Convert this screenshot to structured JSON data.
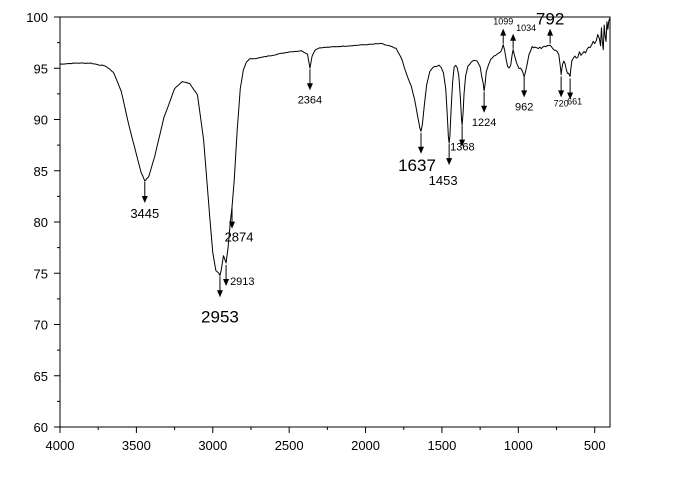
{
  "chart_data": {
    "type": "line",
    "title": "",
    "xlabel": "",
    "ylabel": "",
    "xlim": [
      4000,
      400
    ],
    "ylim": [
      60,
      100
    ],
    "x_reversed": true,
    "grid": false,
    "legend": "none",
    "line_color": "#000000",
    "xticks": [
      4000,
      3500,
      3000,
      2500,
      2000,
      1500,
      1000,
      500
    ],
    "yticks": [
      60,
      65,
      70,
      75,
      80,
      85,
      90,
      95,
      100
    ],
    "series": [
      {
        "x": [
          4000,
          3900,
          3800,
          3700,
          3650,
          3600,
          3550,
          3500,
          3470,
          3445,
          3420,
          3380,
          3320,
          3250,
          3200,
          3150,
          3100,
          3060,
          3020,
          3000,
          2980,
          2960,
          2953,
          2945,
          2930,
          2913,
          2900,
          2885,
          2874,
          2860,
          2840,
          2820,
          2800,
          2780,
          2760,
          2700,
          2600,
          2500,
          2420,
          2380,
          2364,
          2350,
          2330,
          2300,
          2200,
          2100,
          2000,
          1900,
          1850,
          1800,
          1760,
          1730,
          1700,
          1680,
          1660,
          1645,
          1637,
          1628,
          1615,
          1600,
          1580,
          1560,
          1540,
          1520,
          1505,
          1490,
          1475,
          1465,
          1458,
          1453,
          1448,
          1440,
          1430,
          1420,
          1410,
          1400,
          1390,
          1380,
          1372,
          1368,
          1362,
          1355,
          1345,
          1330,
          1310,
          1290,
          1270,
          1250,
          1240,
          1230,
          1224,
          1218,
          1210,
          1195,
          1180,
          1160,
          1140,
          1120,
          1110,
          1099,
          1090,
          1080,
          1070,
          1060,
          1050,
          1040,
          1034,
          1025,
          1010,
          995,
          985,
          975,
          968,
          962,
          955,
          945,
          930,
          910,
          890,
          870,
          850,
          830,
          810,
          800,
          792,
          784,
          775,
          765,
          755,
          745,
          735,
          728,
          722,
          720,
          716,
          710,
          702,
          694,
          686,
          678,
          670,
          664,
          661,
          657,
          650,
          640,
          630,
          620,
          610,
          600,
          590,
          580,
          570,
          560,
          550,
          540,
          530,
          520,
          510,
          500,
          490,
          480,
          470,
          462,
          456,
          450,
          444,
          438,
          432,
          426,
          420,
          414,
          408,
          402,
          400
        ],
        "y": [
          95.4,
          95.5,
          95.5,
          95.2,
          94.6,
          92.8,
          89.5,
          86.6,
          84.9,
          84.0,
          84.4,
          86.4,
          90.2,
          93.0,
          93.7,
          93.5,
          92.4,
          88.0,
          80.5,
          77.0,
          75.3,
          75.0,
          74.8,
          75.3,
          76.7,
          76.0,
          77.5,
          80.0,
          81.5,
          84.0,
          89.0,
          93.0,
          94.8,
          95.6,
          95.9,
          96.0,
          96.3,
          96.6,
          96.7,
          96.4,
          95.0,
          96.2,
          96.8,
          97.0,
          97.1,
          97.2,
          97.3,
          97.4,
          97.2,
          96.9,
          95.8,
          94.3,
          93.2,
          92.0,
          90.4,
          89.2,
          88.8,
          89.5,
          91.5,
          93.4,
          94.6,
          95.1,
          95.2,
          95.3,
          95.1,
          94.6,
          92.9,
          90.4,
          88.4,
          87.7,
          88.4,
          91.0,
          93.7,
          95.1,
          95.3,
          95.0,
          94.3,
          92.3,
          90.0,
          89.5,
          90.6,
          92.6,
          94.2,
          95.2,
          95.6,
          95.8,
          95.7,
          95.2,
          94.3,
          93.5,
          92.8,
          93.4,
          94.6,
          95.4,
          95.9,
          96.2,
          96.4,
          96.5,
          96.8,
          97.3,
          96.8,
          95.9,
          95.2,
          95.0,
          95.3,
          96.4,
          96.8,
          96.2,
          95.4,
          95.0,
          94.9,
          94.7,
          94.5,
          94.3,
          94.6,
          95.3,
          96.3,
          97.0,
          97.1,
          97.0,
          96.9,
          97.1,
          97.2,
          97.3,
          97.2,
          97.0,
          96.9,
          96.8,
          96.8,
          96.6,
          96.3,
          95.6,
          94.8,
          94.3,
          94.8,
          95.4,
          95.7,
          95.4,
          94.9,
          94.6,
          94.6,
          94.3,
          94.1,
          94.8,
          95.6,
          96.0,
          96.1,
          96.0,
          96.2,
          96.5,
          96.3,
          96.5,
          96.7,
          96.6,
          96.9,
          97.1,
          96.9,
          97.2,
          97.6,
          97.4,
          97.8,
          98.3,
          98.0,
          97.2,
          99.0,
          97.6,
          96.8,
          99.2,
          98.2,
          97.6,
          99.5,
          98.8,
          99.7,
          100.0,
          99.8
        ]
      }
    ],
    "annotations": [
      {
        "label": "3445",
        "x": 3445,
        "y": 84.0,
        "direction": "down",
        "size": "small",
        "label_side": "below"
      },
      {
        "label": "2953",
        "x": 2953,
        "y": 74.8,
        "direction": "down",
        "size": "large",
        "label_side": "below"
      },
      {
        "label": "2913",
        "x": 2913,
        "y": 75.9,
        "direction": "down",
        "size": "xsmall",
        "label_side": "right"
      },
      {
        "label": "2874",
        "x": 2874,
        "y": 81.5,
        "direction": "down",
        "size": "small",
        "label_side": "below"
      },
      {
        "label": "2364",
        "x": 2364,
        "y": 95.0,
        "direction": "down",
        "size": "xsmall",
        "label_side": "below"
      },
      {
        "label": "1637",
        "x": 1637,
        "y": 88.8,
        "direction": "down",
        "size": "large",
        "label_side": "below-left"
      },
      {
        "label": "1453",
        "x": 1453,
        "y": 87.7,
        "direction": "down",
        "size": "small",
        "label_side": "below-left"
      },
      {
        "label": "1368",
        "x": 1368,
        "y": 89.5,
        "direction": "down",
        "size": "xsmall",
        "label_side": "below-right"
      },
      {
        "label": "1224",
        "x": 1224,
        "y": 92.8,
        "direction": "down",
        "size": "xsmall",
        "label_side": "below"
      },
      {
        "label": "1099",
        "x": 1099,
        "y": 97.3,
        "direction": "up",
        "size": "xxsmall",
        "label_side": "above"
      },
      {
        "label": "1034",
        "x": 1034,
        "y": 96.8,
        "direction": "up",
        "size": "xxsmall",
        "label_side": "above-right"
      },
      {
        "label": "962",
        "x": 962,
        "y": 94.3,
        "direction": "down",
        "size": "xsmall",
        "label_side": "below"
      },
      {
        "label": "792",
        "x": 792,
        "y": 97.3,
        "direction": "up",
        "size": "large",
        "label_side": "above"
      },
      {
        "label": "720",
        "x": 720,
        "y": 94.3,
        "direction": "down",
        "size": "xxsmall",
        "label_side": "below"
      },
      {
        "label": "661",
        "x": 661,
        "y": 94.1,
        "direction": "down",
        "size": "xxsmall",
        "label_side": "below-right"
      }
    ]
  }
}
